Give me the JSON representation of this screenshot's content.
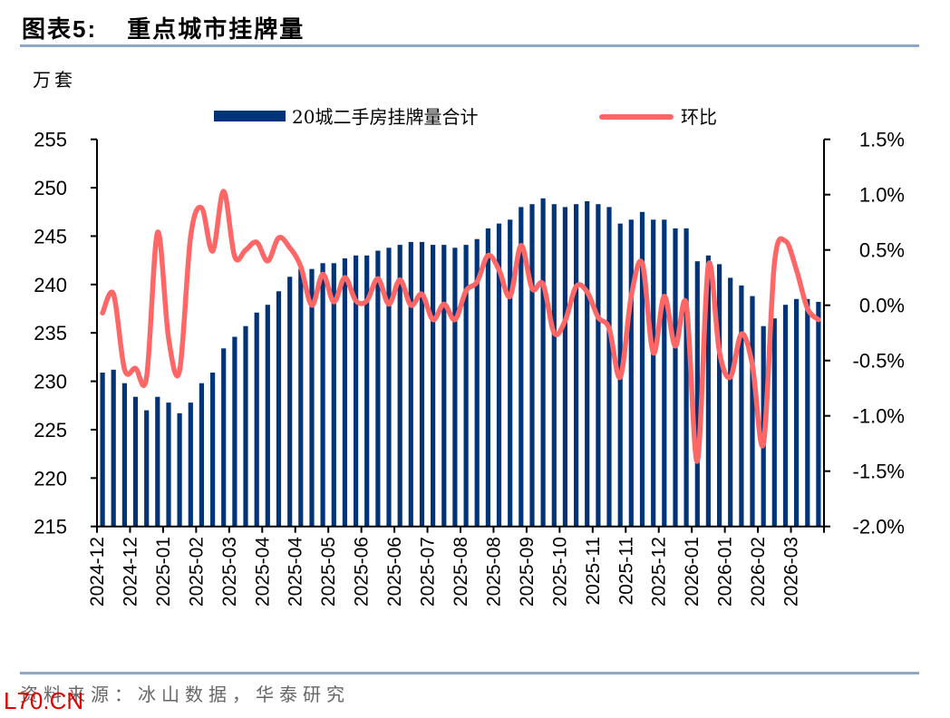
{
  "header": {
    "figure_label": "图表",
    "figure_number": "5:",
    "title": "重点城市挂牌量"
  },
  "unit_label": "万套",
  "footer": {
    "source": "资料来源：冰山数据，华泰研究",
    "watermark": "L70.CN"
  },
  "colors": {
    "bar": "#003478",
    "line": "#ff6666",
    "rule": "#8fa8c6"
  },
  "chart_data": {
    "type": "bar+line",
    "title": "重点城市挂牌量",
    "legend": [
      "20城二手房挂牌量合计",
      "环比"
    ],
    "legend_position": "top-center",
    "ylabel_left": "万套",
    "ylim_left": [
      215,
      255
    ],
    "yticks_left": [
      "255",
      "250",
      "245",
      "240",
      "235",
      "230",
      "225",
      "220",
      "215"
    ],
    "ylim_right": [
      -2.0,
      1.5
    ],
    "yticks_right": [
      "1.5%",
      "1.0%",
      "0.5%",
      "0.0%",
      "-0.5%",
      "-1.0%",
      "-1.5%",
      "-2.0%"
    ],
    "x_tick_labels": [
      "2024-12",
      "2024-12",
      "2025-01",
      "2025-02",
      "2025-03",
      "2025-04",
      "2025-04",
      "2025-05",
      "2025-06",
      "2025-06",
      "2025-07",
      "2025-08",
      "2025-08",
      "2025-09",
      "2025-10",
      "2025-11",
      "2025-11",
      "2025-12",
      "2026-01",
      "2026-01",
      "2026-02",
      "2026-03"
    ],
    "points_per_tick": 3,
    "grid": false,
    "series": [
      {
        "name": "20城二手房挂牌量合计",
        "type": "bar",
        "axis": "left",
        "values": [
          230.9,
          231.2,
          229.8,
          228.4,
          227.0,
          228.4,
          227.8,
          226.7,
          227.8,
          229.8,
          230.9,
          233.4,
          234.6,
          235.7,
          237.1,
          237.9,
          239.3,
          240.8,
          241.6,
          241.6,
          242.2,
          242.2,
          242.7,
          243.0,
          243.0,
          243.5,
          243.8,
          244.1,
          244.4,
          244.4,
          244.1,
          244.1,
          243.8,
          244.1,
          244.7,
          245.8,
          246.3,
          246.7,
          248.0,
          248.3,
          248.9,
          248.3,
          248.0,
          248.3,
          248.6,
          248.3,
          248.0,
          246.3,
          246.7,
          247.5,
          246.7,
          246.7,
          245.8,
          245.8,
          242.4,
          243.0,
          242.1,
          240.7,
          239.9,
          238.8,
          235.7,
          236.5,
          237.9,
          238.5,
          238.5,
          238.2
        ]
      },
      {
        "name": "环比",
        "type": "line",
        "axis": "right",
        "unit": "%",
        "values": [
          -0.07,
          0.1,
          -0.58,
          -0.57,
          -0.65,
          0.66,
          -0.3,
          -0.59,
          0.62,
          0.88,
          0.49,
          1.03,
          0.44,
          0.5,
          0.57,
          0.4,
          0.61,
          0.52,
          0.35,
          0.0,
          0.28,
          0.03,
          0.25,
          0.04,
          0.04,
          0.24,
          0.01,
          0.23,
          0.0,
          0.1,
          -0.13,
          0.01,
          -0.13,
          0.13,
          0.21,
          0.45,
          0.32,
          0.08,
          0.54,
          0.15,
          0.19,
          -0.25,
          -0.14,
          0.17,
          0.12,
          -0.11,
          -0.21,
          -0.65,
          0.08,
          0.38,
          -0.43,
          0.08,
          -0.37,
          0.01,
          -1.41,
          0.36,
          -0.42,
          -0.65,
          -0.26,
          -0.54,
          -1.25,
          0.38,
          0.58,
          0.32,
          -0.03,
          -0.13
        ]
      }
    ]
  }
}
